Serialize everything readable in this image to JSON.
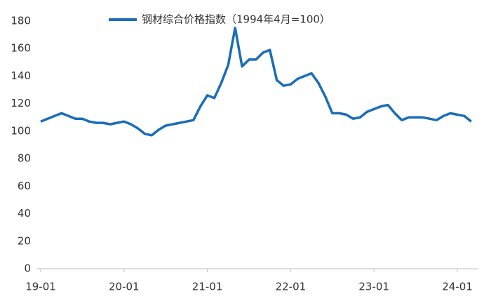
{
  "chart_data": {
    "type": "line",
    "x": [
      "19-01",
      "19-02",
      "19-03",
      "19-04",
      "19-05",
      "19-06",
      "19-07",
      "19-08",
      "19-09",
      "19-10",
      "19-11",
      "19-12",
      "20-01",
      "20-02",
      "20-03",
      "20-04",
      "20-05",
      "20-06",
      "20-07",
      "20-08",
      "20-09",
      "20-10",
      "20-11",
      "20-12",
      "21-01",
      "21-02",
      "21-03",
      "21-04",
      "21-05",
      "21-06",
      "21-07",
      "21-08",
      "21-09",
      "21-10",
      "21-11",
      "21-12",
      "22-01",
      "22-02",
      "22-03",
      "22-04",
      "22-05",
      "22-06",
      "22-07",
      "22-08",
      "22-09",
      "22-10",
      "22-11",
      "22-12",
      "23-01",
      "23-02",
      "23-03",
      "23-04",
      "23-05",
      "23-06",
      "23-07",
      "23-08",
      "23-09",
      "23-10",
      "23-11",
      "23-12",
      "24-01",
      "24-02",
      "24-03"
    ],
    "xticks": [
      "19-01",
      "20-01",
      "21-01",
      "22-01",
      "23-01",
      "24-01"
    ],
    "series": [
      {
        "name": "钢材综合价格指数（1994年4月=100）",
        "color": "#1a6db8",
        "values": [
          107,
          109,
          111,
          113,
          111,
          109,
          109,
          107,
          106,
          106,
          105,
          106,
          107,
          105,
          102,
          98,
          97,
          101,
          104,
          105,
          106,
          107,
          108,
          118,
          126,
          124,
          135,
          148,
          175,
          147,
          152,
          152,
          157,
          159,
          137,
          133,
          134,
          138,
          140,
          142,
          135,
          125,
          113,
          113,
          112,
          109,
          110,
          114,
          116,
          118,
          119,
          113,
          108,
          110,
          110,
          110,
          109,
          108,
          111,
          113,
          112,
          111,
          107
        ]
      }
    ],
    "ylim": [
      0,
      180
    ],
    "yticks": [
      0,
      20,
      40,
      60,
      80,
      100,
      120,
      140,
      160,
      180
    ],
    "grid": false
  }
}
